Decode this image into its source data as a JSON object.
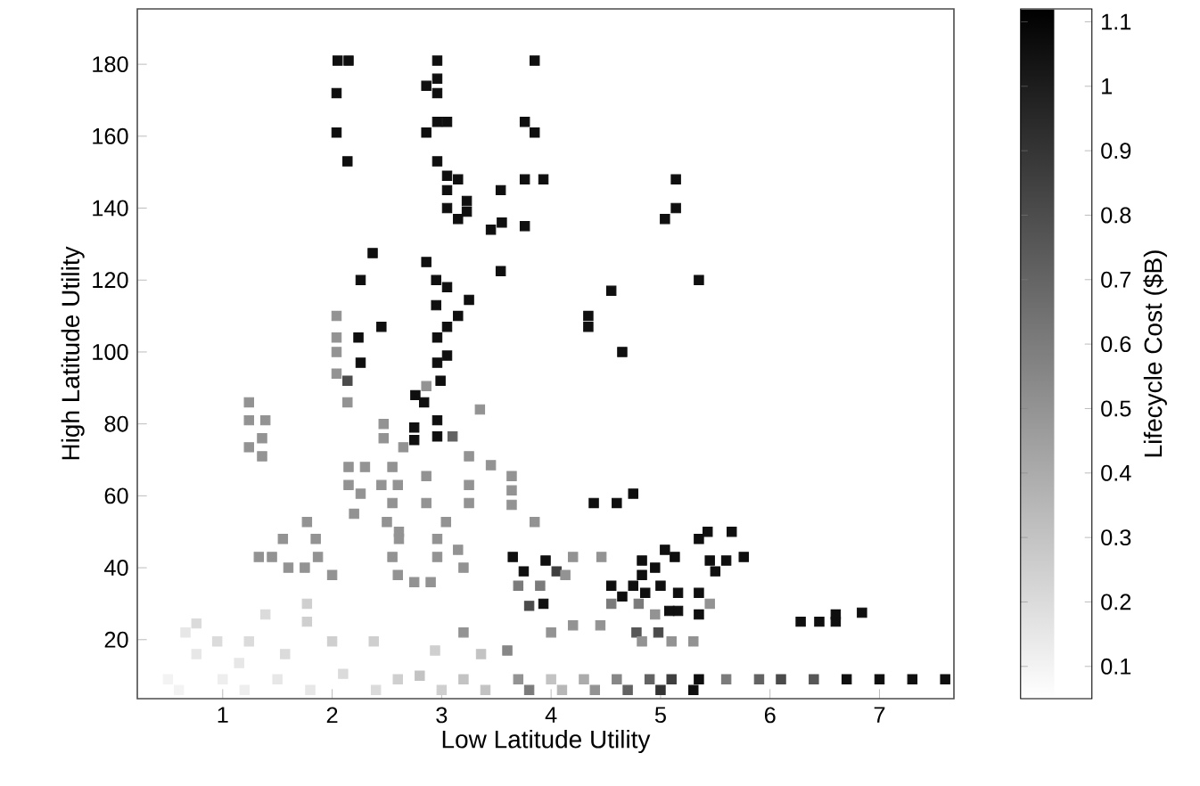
{
  "chart_data": {
    "type": "scatter",
    "xlabel": "Low Latitude Utility",
    "ylabel": "High Latitude Utility",
    "clabel": "Lifecycle Cost ($B)",
    "marker": "square",
    "xlim": [
      0.22,
      7.68
    ],
    "ylim": [
      3.6,
      195.4
    ],
    "xticks": [
      1,
      2,
      3,
      4,
      5,
      6,
      7
    ],
    "yticks": [
      20,
      40,
      60,
      80,
      100,
      120,
      140,
      160,
      180
    ],
    "clim": [
      0.05,
      1.12
    ],
    "cticks": [
      0.1,
      0.2,
      0.3,
      0.4,
      0.5,
      0.6,
      0.7,
      0.8,
      0.9,
      1,
      1.1
    ],
    "x": [
      2.05,
      2.15,
      2.04,
      2.04,
      2.14,
      2.96,
      2.96,
      2.86,
      2.96,
      3.85,
      2.86,
      2.96,
      3.05,
      3.76,
      3.85,
      2.96,
      3.05,
      3.15,
      3.05,
      3.23,
      3.23,
      3.05,
      3.15,
      3.54,
      3.76,
      3.93,
      3.45,
      3.55,
      3.76,
      2.37,
      2.86,
      3.54,
      2.26,
      2.95,
      3.05,
      2.95,
      3.25,
      2.45,
      2.24,
      3.15,
      3.05,
      2.96,
      5.14,
      5.14,
      5.04,
      5.35,
      4.55,
      4.34,
      4.34,
      4.65,
      2.26,
      2.96,
      3.05,
      2.99,
      2.76,
      2.84,
      2.96,
      2.75,
      2.75,
      2.96,
      3.65,
      3.75,
      4.39,
      4.6,
      4.75,
      3.95,
      4.83,
      4.95,
      4.83,
      5.04,
      5.13,
      5.35,
      5.43,
      5.65,
      5.45,
      5.6,
      5.5,
      5.76,
      4.55,
      4.75,
      4.65,
      4.86,
      5.0,
      5.16,
      5.16,
      5.08,
      5.35,
      5.35,
      3.93,
      6.28,
      6.45,
      6.6,
      6.6,
      6.84,
      2.14,
      3.1,
      4.05,
      3.8,
      4.78,
      4.98,
      2.04,
      2.04,
      2.04,
      2.04,
      2.86,
      1.24,
      2.14,
      3.35,
      1.24,
      1.39,
      2.47,
      2.47,
      1.36,
      1.24,
      1.36,
      2.65,
      3.25,
      3.45,
      3.64,
      3.64,
      3.64,
      2.15,
      2.3,
      2.55,
      2.15,
      2.45,
      2.6,
      2.26,
      2.86,
      3.25,
      2.55,
      2.86,
      3.25,
      2.2,
      2.5,
      3.04,
      3.85,
      1.77,
      2.61,
      2.61,
      1.55,
      1.85,
      2.96,
      2.96,
      3.15,
      1.33,
      1.45,
      1.6,
      1.75,
      1.87,
      2.0,
      2.55,
      2.6,
      2.75,
      2.9,
      3.2,
      3.7,
      3.9,
      4.13,
      4.2,
      4.46,
      5.45,
      4.55,
      4.8,
      4.95,
      4.2,
      4.45,
      4.0,
      4.83,
      5.1,
      5.3,
      3.2,
      3.6,
      1.77,
      1.77,
      1.39,
      0.76,
      0.66,
      0.95,
      1.24,
      0.76,
      1.15,
      1.57,
      2.0,
      2.38,
      2.94,
      3.36,
      2.1,
      2.8,
      0.6,
      1.2,
      1.8,
      2.4,
      3.0,
      3.4,
      3.8,
      4.1,
      4.4,
      4.7,
      5.0,
      5.3,
      0.5,
      1.0,
      1.5,
      2.6,
      3.2,
      3.7,
      4.0,
      4.3,
      4.6,
      4.9,
      5.1,
      5.35,
      5.6,
      5.9,
      6.1,
      6.4,
      6.7,
      7.0,
      7.3,
      7.6
    ],
    "values": [
      181,
      181,
      172,
      161,
      153,
      181,
      176,
      174,
      172,
      181,
      161,
      164,
      164,
      164,
      161,
      153,
      149,
      148,
      145,
      142,
      139,
      140,
      137,
      145,
      148,
      148,
      134,
      136,
      135,
      127.5,
      125,
      122.5,
      120,
      120,
      118,
      113,
      114.5,
      107,
      104,
      110,
      107,
      104,
      148,
      140,
      137,
      120,
      117,
      110,
      107,
      100,
      97,
      97,
      99,
      92,
      88,
      86,
      81,
      79,
      75.5,
      76.5,
      43,
      39,
      58,
      58,
      60.6,
      42,
      42,
      40,
      38,
      45,
      43,
      48,
      50,
      50,
      42,
      42,
      39,
      43,
      35,
      35,
      32,
      33,
      35,
      33,
      28,
      28,
      33,
      27,
      30,
      25,
      25,
      27,
      25,
      27.5,
      92,
      76.5,
      39,
      29.4,
      22,
      22,
      110,
      104,
      100,
      94,
      90.5,
      86,
      86,
      84,
      81,
      81,
      80,
      76,
      76,
      73.5,
      71,
      73.5,
      71,
      68.5,
      65.5,
      61.5,
      57.5,
      68,
      68,
      68,
      63,
      63,
      63,
      60.6,
      65.5,
      63,
      58,
      58,
      58,
      55,
      52.7,
      52.7,
      52.7,
      52.7,
      50,
      48,
      48,
      48,
      48,
      43,
      45,
      43,
      43,
      40,
      40,
      43,
      38,
      43,
      38,
      36,
      36,
      40,
      35,
      35,
      38,
      43,
      43,
      30,
      30,
      30,
      27,
      24,
      24,
      22,
      19.5,
      19.5,
      19.5,
      22,
      17,
      30,
      25,
      27,
      24.5,
      22,
      19.5,
      19.5,
      16,
      13.5,
      16,
      19.5,
      19.5,
      17,
      16,
      10.5,
      10,
      6,
      6,
      6,
      6,
      6,
      6,
      6,
      6,
      6,
      6,
      6,
      6,
      9,
      9,
      9,
      9,
      9,
      9,
      9,
      9,
      9,
      9,
      9,
      9,
      9,
      9,
      9,
      9,
      9,
      9,
      9,
      9
    ],
    "cvalues": [
      1.05,
      1.05,
      1.05,
      1.05,
      1.05,
      1.05,
      1.05,
      1.05,
      1.05,
      1.05,
      1.05,
      1.05,
      1.05,
      1.05,
      1.05,
      1.05,
      1.05,
      1.05,
      1.05,
      1.05,
      1.05,
      1.05,
      1.05,
      1.05,
      1.05,
      1.05,
      1.05,
      1.05,
      1.05,
      1.05,
      1.05,
      1.05,
      1.05,
      1.05,
      1.05,
      1.05,
      1.05,
      1.05,
      1.05,
      1.05,
      1.05,
      1.05,
      1.05,
      1.05,
      1.05,
      1.05,
      1.05,
      1.05,
      1.05,
      1.05,
      1.05,
      1.05,
      1.05,
      1.05,
      1.05,
      1.05,
      1.05,
      1.05,
      1.05,
      1.05,
      1.05,
      1.05,
      1.05,
      1.05,
      1.05,
      1.05,
      1.05,
      1.05,
      1.05,
      1.05,
      1.05,
      1.05,
      1.05,
      1.05,
      1.05,
      1.05,
      1.05,
      1.05,
      1.05,
      1.05,
      1.05,
      1.05,
      1.05,
      1.05,
      1.05,
      1.05,
      1.05,
      1.05,
      1.05,
      1.05,
      1.05,
      1.05,
      1.05,
      1.05,
      0.8,
      0.7,
      0.85,
      0.8,
      0.75,
      0.8,
      0.5,
      0.5,
      0.5,
      0.5,
      0.5,
      0.5,
      0.5,
      0.5,
      0.5,
      0.5,
      0.5,
      0.5,
      0.5,
      0.5,
      0.5,
      0.5,
      0.5,
      0.5,
      0.5,
      0.5,
      0.5,
      0.5,
      0.5,
      0.5,
      0.5,
      0.5,
      0.5,
      0.5,
      0.5,
      0.5,
      0.5,
      0.5,
      0.5,
      0.5,
      0.5,
      0.5,
      0.5,
      0.5,
      0.5,
      0.5,
      0.5,
      0.5,
      0.5,
      0.5,
      0.5,
      0.5,
      0.5,
      0.5,
      0.5,
      0.5,
      0.5,
      0.5,
      0.5,
      0.5,
      0.5,
      0.5,
      0.6,
      0.6,
      0.5,
      0.5,
      0.5,
      0.5,
      0.6,
      0.6,
      0.5,
      0.5,
      0.5,
      0.5,
      0.5,
      0.5,
      0.5,
      0.5,
      0.55,
      0.25,
      0.25,
      0.2,
      0.2,
      0.15,
      0.2,
      0.2,
      0.15,
      0.15,
      0.2,
      0.25,
      0.25,
      0.25,
      0.3,
      0.2,
      0.3,
      0.1,
      0.12,
      0.15,
      0.2,
      0.25,
      0.3,
      0.6,
      0.35,
      0.5,
      0.7,
      0.9,
      1.05,
      0.1,
      0.12,
      0.15,
      0.25,
      0.3,
      0.5,
      0.3,
      0.4,
      0.55,
      0.7,
      0.85,
      1.05,
      0.6,
      0.7,
      0.8,
      0.75,
      1.05,
      1.05,
      1.05,
      1.05
    ]
  }
}
